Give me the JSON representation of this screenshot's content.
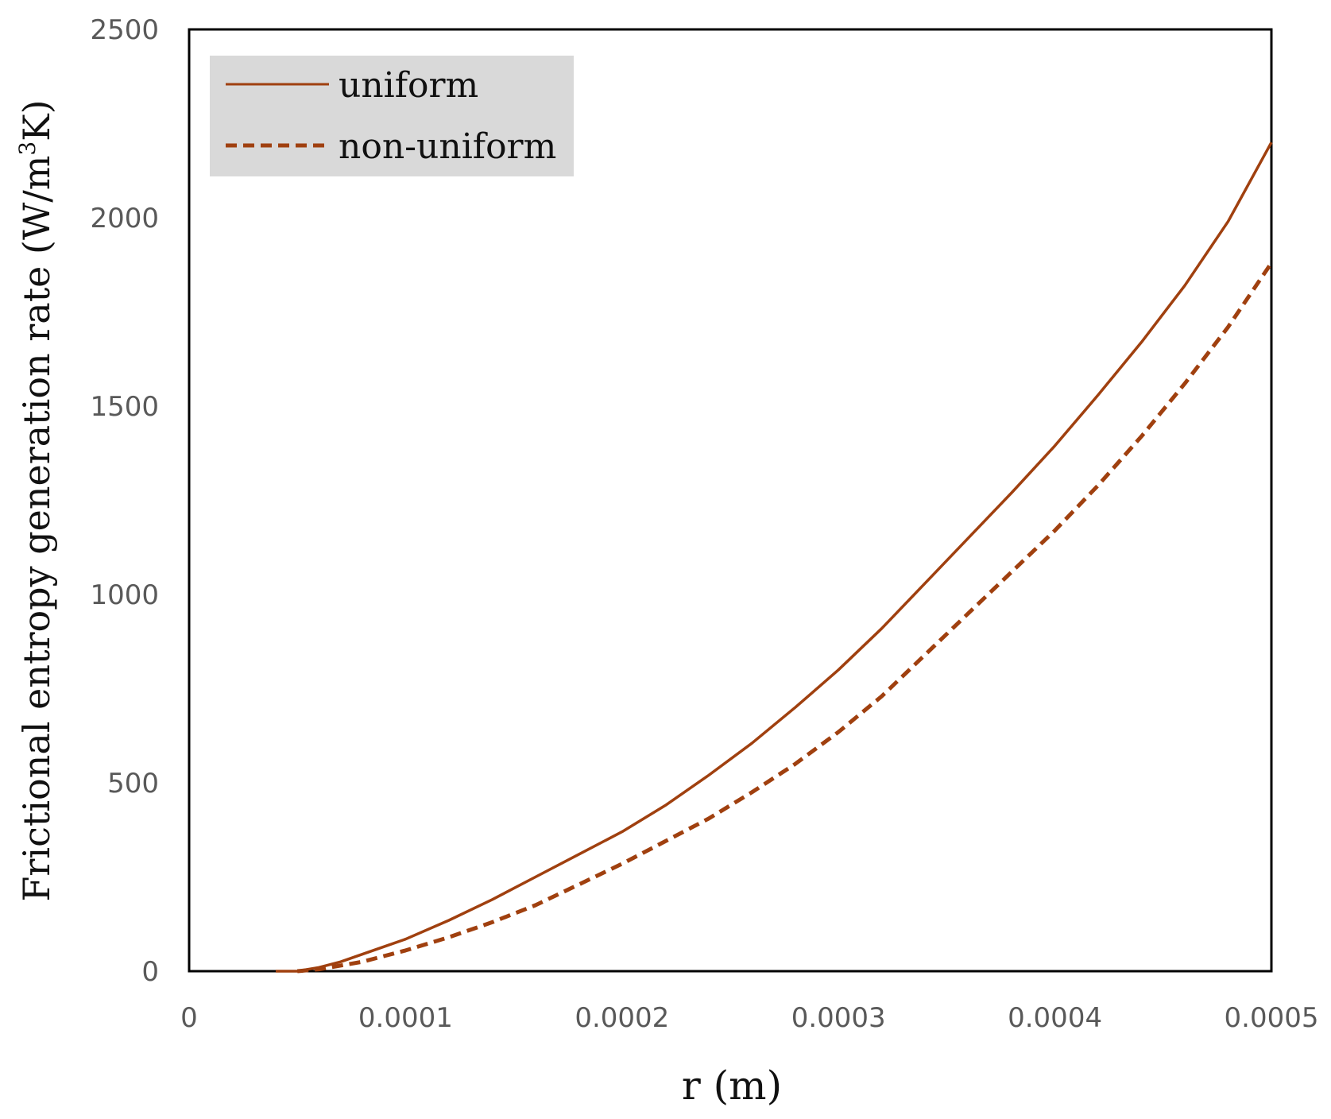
{
  "chart_data": {
    "type": "line",
    "xlabel": "r (m)",
    "ylabel_main": "Frictional entropy generation rate (W/m",
    "ylabel_sup": "3",
    "ylabel_end": "K)",
    "xlim": [
      0,
      0.0005
    ],
    "ylim": [
      0,
      2500
    ],
    "x_ticks": [
      0,
      0.0001,
      0.0002,
      0.0003,
      0.0004,
      0.0005
    ],
    "x_tick_labels": [
      "0",
      "0.0001",
      "0.0002",
      "0.0003",
      "0.0004",
      "0.0005"
    ],
    "y_ticks": [
      0,
      500,
      1000,
      1500,
      2000,
      2500
    ],
    "y_tick_labels": [
      "0",
      "500",
      "1000",
      "1500",
      "2000",
      "2500"
    ],
    "grid": false,
    "legend_position": "top-left",
    "series": [
      {
        "name": "uniform",
        "style": "solid",
        "color": "#A0400F",
        "x": [
          4e-05,
          5e-05,
          6e-05,
          7e-05,
          8e-05,
          9e-05,
          0.0001,
          0.00012,
          0.00014,
          0.00016,
          0.00018,
          0.0002,
          0.00022,
          0.00024,
          0.00026,
          0.00028,
          0.0003,
          0.00032,
          0.00034,
          0.00036,
          0.00038,
          0.0004,
          0.00042,
          0.00044,
          0.00046,
          0.00048,
          0.0005
        ],
        "y": [
          0,
          0,
          10,
          25,
          45,
          65,
          85,
          135,
          190,
          250,
          310,
          370,
          440,
          520,
          605,
          700,
          800,
          910,
          1030,
          1150,
          1270,
          1395,
          1530,
          1670,
          1820,
          1990,
          2200
        ]
      },
      {
        "name": "non-uniform",
        "style": "dashed",
        "color": "#A0400F",
        "x": [
          5e-05,
          6e-05,
          7e-05,
          8e-05,
          9e-05,
          0.0001,
          0.00012,
          0.00014,
          0.00016,
          0.00018,
          0.0002,
          0.00022,
          0.00024,
          0.00026,
          0.00028,
          0.0003,
          0.00032,
          0.00034,
          0.00036,
          0.00038,
          0.0004,
          0.00042,
          0.00044,
          0.00046,
          0.00048,
          0.0005
        ],
        "y": [
          0,
          5,
          15,
          25,
          40,
          55,
          90,
          130,
          175,
          230,
          285,
          345,
          405,
          475,
          550,
          635,
          730,
          840,
          950,
          1060,
          1170,
          1290,
          1420,
          1560,
          1710,
          1880
        ]
      }
    ]
  }
}
